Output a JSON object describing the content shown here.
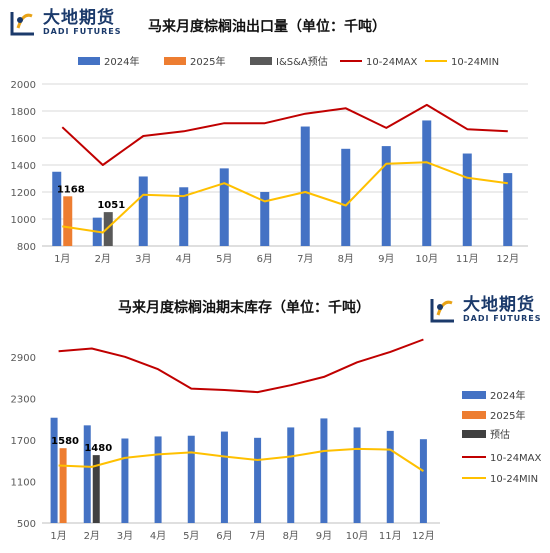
{
  "brand": {
    "name_zh": "大地期货",
    "name_en": "DADI FUTURES"
  },
  "chart_data": [
    {
      "type": "bar",
      "title": "马来月度棕榈油出口量（单位：千吨）",
      "categories": [
        "1月",
        "2月",
        "3月",
        "4月",
        "5月",
        "6月",
        "7月",
        "8月",
        "9月",
        "10月",
        "11月",
        "12月"
      ],
      "ylim": [
        800,
        2000
      ],
      "yticks": [
        800,
        1000,
        1200,
        1400,
        1600,
        1800,
        2000
      ],
      "grid": true,
      "legend_position": "top",
      "series": [
        {
          "name": "2024年",
          "kind": "bar",
          "color": "#4472C4",
          "values": [
            1350,
            1010,
            1315,
            1235,
            1375,
            1200,
            1685,
            1520,
            1540,
            1730,
            1485,
            1340
          ]
        },
        {
          "name": "2025年",
          "kind": "bar",
          "color": "#ED7D31",
          "values": [
            1168,
            null,
            null,
            null,
            null,
            null,
            null,
            null,
            null,
            null,
            null,
            null
          ]
        },
        {
          "name": "I&S&A预估",
          "kind": "bar",
          "color": "#595959",
          "values": [
            null,
            1051,
            null,
            null,
            null,
            null,
            null,
            null,
            null,
            null,
            null,
            null
          ]
        },
        {
          "name": "10-24MAX",
          "kind": "line",
          "color": "#C00000",
          "values": [
            1680,
            1400,
            1615,
            1650,
            1710,
            1710,
            1780,
            1820,
            1675,
            1845,
            1665,
            1650
          ]
        },
        {
          "name": "10-24MIN",
          "kind": "line",
          "color": "#FFC000",
          "values": [
            945,
            900,
            1180,
            1170,
            1265,
            1130,
            1200,
            1100,
            1410,
            1420,
            1305,
            1265
          ]
        }
      ],
      "data_labels": [
        {
          "series": "2025年",
          "index": 0,
          "text": "1168"
        },
        {
          "series": "I&S&A预估",
          "index": 1,
          "text": "1051"
        }
      ]
    },
    {
      "type": "bar",
      "title": "马来月度棕榈油期末库存（单位：千吨）",
      "categories": [
        "1月",
        "2月",
        "3月",
        "4月",
        "5月",
        "6月",
        "7月",
        "8月",
        "9月",
        "10月",
        "11月",
        "12月"
      ],
      "ylim": [
        500,
        3200
      ],
      "yticks": [
        500,
        1100,
        1700,
        2300,
        2900
      ],
      "grid": false,
      "legend_position": "right",
      "series": [
        {
          "name": "2024年",
          "kind": "bar",
          "color": "#4472C4",
          "values": [
            2020,
            1910,
            1720,
            1750,
            1760,
            1820,
            1730,
            1880,
            2010,
            1880,
            1830,
            1710
          ]
        },
        {
          "name": "2025年",
          "kind": "bar",
          "color": "#ED7D31",
          "values": [
            1580,
            null,
            null,
            null,
            null,
            null,
            null,
            null,
            null,
            null,
            null,
            null
          ]
        },
        {
          "name": "预估",
          "kind": "bar",
          "color": "#404040",
          "values": [
            null,
            1480,
            null,
            null,
            null,
            null,
            null,
            null,
            null,
            null,
            null,
            null
          ]
        },
        {
          "name": "10-24MAX",
          "kind": "line",
          "color": "#C00000",
          "values": [
            2980,
            3020,
            2900,
            2720,
            2440,
            2420,
            2390,
            2490,
            2610,
            2820,
            2970,
            3150
          ]
        },
        {
          "name": "10-24MIN",
          "kind": "line",
          "color": "#FFC000",
          "values": [
            1330,
            1310,
            1440,
            1490,
            1520,
            1460,
            1410,
            1460,
            1540,
            1570,
            1560,
            1250
          ]
        }
      ],
      "data_labels": [
        {
          "series": "2025年",
          "index": 0,
          "text": "1580"
        },
        {
          "series": "预估",
          "index": 1,
          "text": "1480"
        }
      ]
    }
  ]
}
